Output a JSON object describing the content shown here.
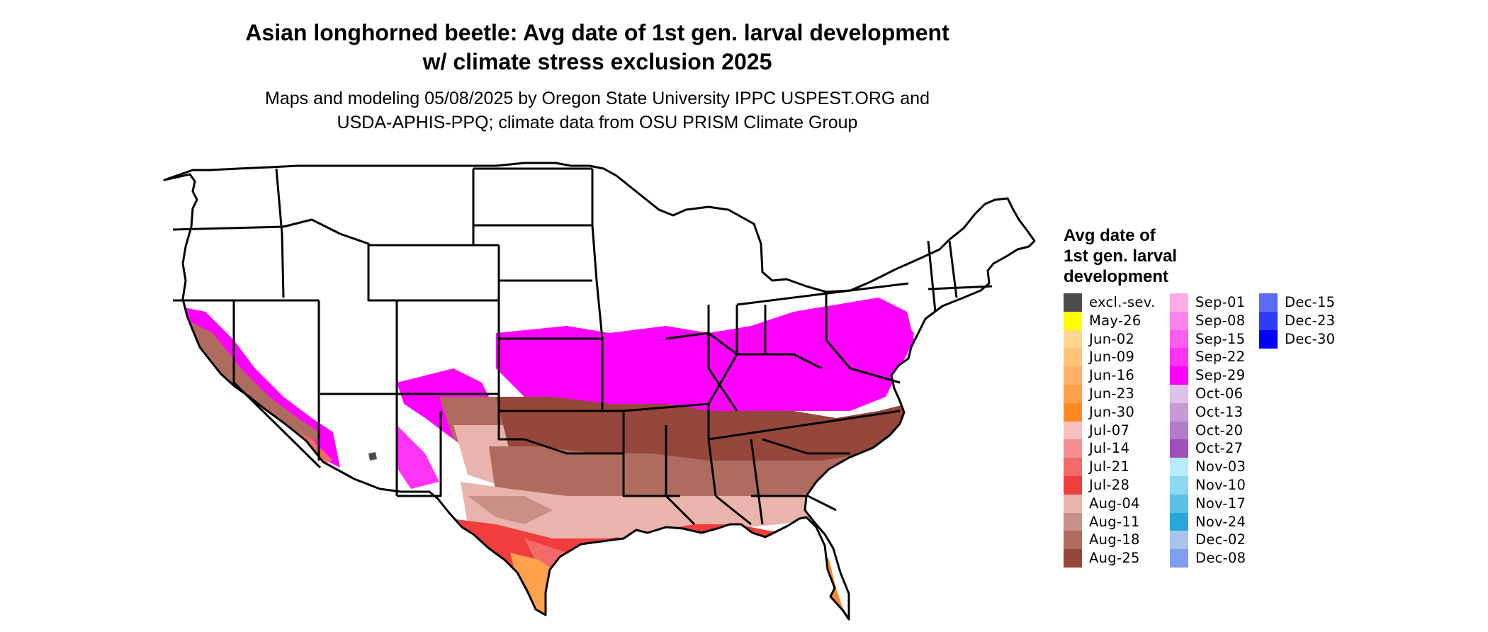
{
  "title": {
    "line1": "Asian longhorned beetle: Avg date of 1st gen. larval development",
    "line2": "w/ climate stress exclusion 2025"
  },
  "subtitle": {
    "line1": "Maps and modeling 05/08/2025 by Oregon State University IPPC USPEST.ORG and",
    "line2": "USDA-APHIS-PPQ; climate data from OSU PRISM Climate Group"
  },
  "legend": {
    "title_lines": [
      "Avg date of",
      "1st gen. larval",
      "development"
    ],
    "columns": [
      [
        {
          "label": "excl.-sev.",
          "color": "#4d4d4d"
        },
        {
          "label": "May-26",
          "color": "#ffff00"
        },
        {
          "label": "Jun-02",
          "color": "#ffd58f"
        },
        {
          "label": "Jun-09",
          "color": "#ffc577"
        },
        {
          "label": "Jun-16",
          "color": "#ffb062"
        },
        {
          "label": "Jun-23",
          "color": "#ffa04b"
        },
        {
          "label": "Jun-30",
          "color": "#ff8a22"
        },
        {
          "label": "Jul-07",
          "color": "#f6c0c0"
        },
        {
          "label": "Jul-14",
          "color": "#f49090"
        },
        {
          "label": "Jul-21",
          "color": "#f26a6a"
        },
        {
          "label": "Jul-28",
          "color": "#f03d3d"
        },
        {
          "label": "Aug-04",
          "color": "#e8b4ab"
        },
        {
          "label": "Aug-11",
          "color": "#c99087"
        },
        {
          "label": "Aug-18",
          "color": "#b06b5f"
        },
        {
          "label": "Aug-25",
          "color": "#94473a"
        }
      ],
      [
        {
          "label": "Sep-01",
          "color": "#ffaee3"
        },
        {
          "label": "Sep-08",
          "color": "#ff85ec"
        },
        {
          "label": "Sep-15",
          "color": "#ff5cf0"
        },
        {
          "label": "Sep-22",
          "color": "#ff33f5"
        },
        {
          "label": "Sep-29",
          "color": "#ff00ff"
        },
        {
          "label": "Oct-06",
          "color": "#ddc1e6"
        },
        {
          "label": "Oct-13",
          "color": "#c79ad6"
        },
        {
          "label": "Oct-20",
          "color": "#b47acb"
        },
        {
          "label": "Oct-27",
          "color": "#9f52ba"
        },
        {
          "label": "Nov-03",
          "color": "#b8ecfc"
        },
        {
          "label": "Nov-10",
          "color": "#8cd8f2"
        },
        {
          "label": "Nov-17",
          "color": "#5dc0e8"
        },
        {
          "label": "Nov-24",
          "color": "#28a6da"
        },
        {
          "label": "Dec-02",
          "color": "#a7c5eb"
        },
        {
          "label": "Dec-08",
          "color": "#7f9eee"
        }
      ],
      [
        {
          "label": "Dec-15",
          "color": "#5a6bf6"
        },
        {
          "label": "Dec-23",
          "color": "#2e3cfa"
        },
        {
          "label": "Dec-30",
          "color": "#0000ff"
        }
      ]
    ]
  }
}
